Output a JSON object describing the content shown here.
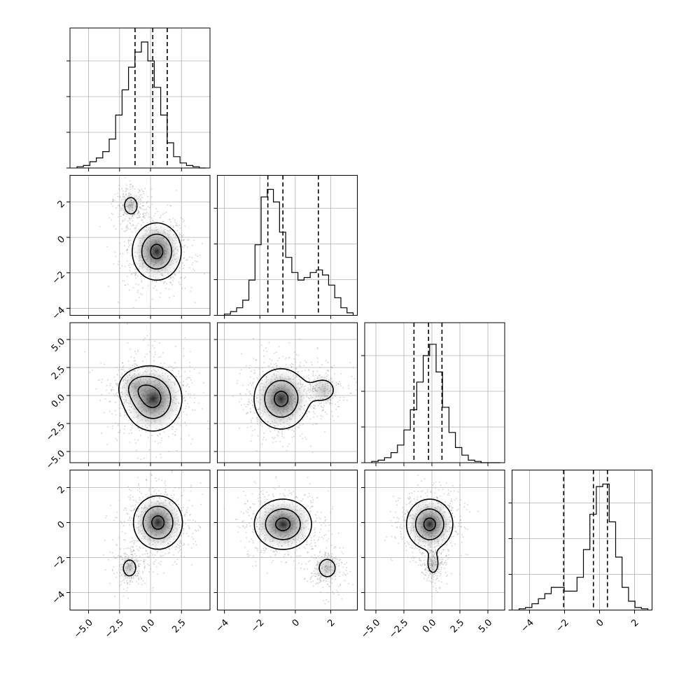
{
  "chart_data": {
    "type": "corner",
    "title": "",
    "parameters": [
      {
        "index": 0,
        "label": "",
        "range": [
          -6.5,
          4.8
        ],
        "ticks": [
          -5.0,
          -2.5,
          0.0,
          2.5
        ],
        "tick_labels": [
          "−5.0",
          "−2.5",
          "0.0",
          "2.5"
        ]
      },
      {
        "index": 1,
        "label": "",
        "range": [
          -4.4,
          3.5
        ],
        "ticks": [
          -4,
          -2,
          0,
          2
        ],
        "tick_labels": [
          "−4",
          "−2",
          "0",
          "2"
        ]
      },
      {
        "index": 2,
        "label": "",
        "range": [
          -6.0,
          6.5
        ],
        "ticks": [
          -5.0,
          -2.5,
          0.0,
          2.5,
          5.0
        ],
        "tick_labels": [
          "−5.0",
          "−2.5",
          "0.0",
          "2.5",
          "5.0"
        ]
      },
      {
        "index": 3,
        "label": "",
        "range": [
          -5.0,
          3.0
        ],
        "ticks": [
          -4,
          -2,
          0,
          2
        ],
        "tick_labels": [
          "−4",
          "−2",
          "0",
          "2"
        ]
      }
    ],
    "diagonal_histograms": [
      {
        "param": 0,
        "quantiles": [
          -1.25,
          0.18,
          1.35
        ],
        "counts": [
          0.01,
          0.02,
          0.05,
          0.08,
          0.13,
          0.23,
          0.42,
          0.62,
          0.8,
          0.92,
          1.0,
          0.85,
          0.64,
          0.42,
          0.2,
          0.09,
          0.04,
          0.02,
          0.01,
          0.0
        ]
      },
      {
        "param": 1,
        "quantiles": [
          -1.55,
          -0.7,
          1.3
        ],
        "counts": [
          0.01,
          0.03,
          0.06,
          0.12,
          0.28,
          0.56,
          0.94,
          1.0,
          0.9,
          0.66,
          0.46,
          0.34,
          0.28,
          0.3,
          0.34,
          0.36,
          0.32,
          0.24,
          0.14,
          0.06,
          0.02
        ]
      },
      {
        "param": 2,
        "quantiles": [
          -1.6,
          -0.3,
          0.9
        ],
        "counts": [
          0.01,
          0.02,
          0.04,
          0.08,
          0.14,
          0.26,
          0.42,
          0.64,
          0.85,
          0.94,
          0.72,
          0.44,
          0.24,
          0.12,
          0.06,
          0.02,
          0.01,
          0.0,
          0.0,
          0.0
        ]
      },
      {
        "param": 3,
        "quantiles": [
          -2.05,
          -0.35,
          0.45
        ],
        "counts": [
          0.01,
          0.02,
          0.05,
          0.09,
          0.13,
          0.18,
          0.18,
          0.15,
          0.15,
          0.26,
          0.48,
          0.76,
          0.98,
          1.0,
          0.7,
          0.42,
          0.18,
          0.07,
          0.02,
          0.01
        ]
      }
    ],
    "pair_panels": [
      {
        "x": 0,
        "y": 1,
        "blobs": [
          {
            "cx": 0.5,
            "cy": -0.8,
            "sx": 1.1,
            "sy": 0.9,
            "w": 1.0
          },
          {
            "cx": -1.6,
            "cy": 1.8,
            "sx": 0.55,
            "sy": 0.5,
            "w": 0.3
          }
        ]
      },
      {
        "x": 0,
        "y": 2,
        "blobs": [
          {
            "cx": 0.2,
            "cy": -0.3,
            "sx": 1.3,
            "sy": 1.6,
            "w": 1.0
          },
          {
            "cx": -1.2,
            "cy": 0.8,
            "sx": 0.9,
            "sy": 0.9,
            "w": 0.35
          }
        ]
      },
      {
        "x": 0,
        "y": 3,
        "blobs": [
          {
            "cx": 0.6,
            "cy": 0.0,
            "sx": 1.1,
            "sy": 0.85,
            "w": 1.0
          },
          {
            "cx": -1.7,
            "cy": -2.6,
            "sx": 0.55,
            "sy": 0.5,
            "w": 0.3
          }
        ]
      },
      {
        "x": 1,
        "y": 2,
        "blobs": [
          {
            "cx": -0.8,
            "cy": -0.3,
            "sx": 0.85,
            "sy": 1.5,
            "w": 1.0
          },
          {
            "cx": 1.6,
            "cy": 0.5,
            "sx": 0.6,
            "sy": 0.9,
            "w": 0.3
          }
        ]
      },
      {
        "x": 1,
        "y": 3,
        "blobs": [
          {
            "cx": -0.7,
            "cy": -0.1,
            "sx": 0.9,
            "sy": 0.8,
            "w": 1.0
          },
          {
            "cx": 1.8,
            "cy": -2.6,
            "sx": 0.5,
            "sy": 0.55,
            "w": 0.3
          }
        ]
      },
      {
        "x": 2,
        "y": 3,
        "blobs": [
          {
            "cx": -0.2,
            "cy": -0.1,
            "sx": 1.15,
            "sy": 0.8,
            "w": 1.0
          },
          {
            "cx": 0.1,
            "cy": -2.4,
            "sx": 0.45,
            "sy": 0.5,
            "w": 0.3
          }
        ]
      }
    ],
    "contour_levels": [
      0.9,
      0.55,
      0.2
    ],
    "grid": true,
    "colors": {
      "ink": "#000000",
      "grid": "#b0b0b0",
      "scatter": "#9a9a9a",
      "background": "#ffffff"
    }
  }
}
